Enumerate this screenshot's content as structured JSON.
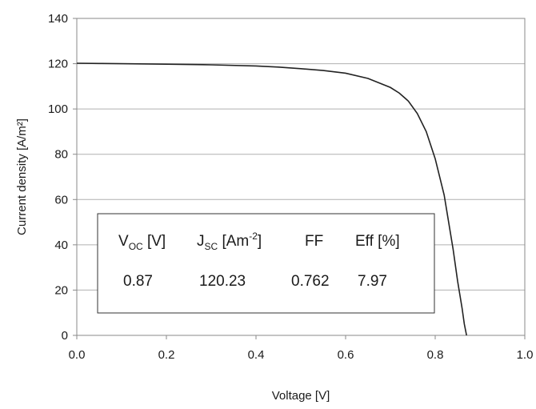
{
  "chart_data": {
    "type": "line",
    "xlabel": "Voltage [V]",
    "ylabel": "Current density [A/m²]",
    "xlim": [
      0.0,
      1.0
    ],
    "ylim": [
      0,
      140
    ],
    "x_ticks": [
      "0.0",
      "0.2",
      "0.4",
      "0.6",
      "0.8",
      "1.0"
    ],
    "y_ticks": [
      "0",
      "20",
      "40",
      "60",
      "80",
      "100",
      "120",
      "140"
    ],
    "grid": "horizontal",
    "series": [
      {
        "color": "#222222",
        "x": [
          0.0,
          0.05,
          0.1,
          0.2,
          0.3,
          0.4,
          0.45,
          0.5,
          0.55,
          0.6,
          0.65,
          0.7,
          0.72,
          0.74,
          0.76,
          0.78,
          0.8,
          0.82,
          0.84,
          0.85,
          0.86,
          0.865,
          0.87
        ],
        "y": [
          120.2,
          120.1,
          120.0,
          119.8,
          119.5,
          119.0,
          118.5,
          117.8,
          117.0,
          115.8,
          113.5,
          109.5,
          107.0,
          103.5,
          98.0,
          90.0,
          78.0,
          62.0,
          38.0,
          24.0,
          12.0,
          5.0,
          0.0
        ]
      }
    ],
    "inset_table": {
      "headers": [
        {
          "main": "V",
          "sub": "OC",
          "rest": " [V]",
          "sup": ""
        },
        {
          "main": "J",
          "sub": "SC",
          "rest": " [Am",
          "sup": "-2",
          "close": "]"
        },
        {
          "main": "FF",
          "sub": "",
          "rest": "",
          "sup": ""
        },
        {
          "main": "Eff [%]",
          "sub": "",
          "rest": "",
          "sup": ""
        }
      ],
      "values": [
        "0.87",
        "120.23",
        "0.762",
        "7.97"
      ]
    }
  }
}
